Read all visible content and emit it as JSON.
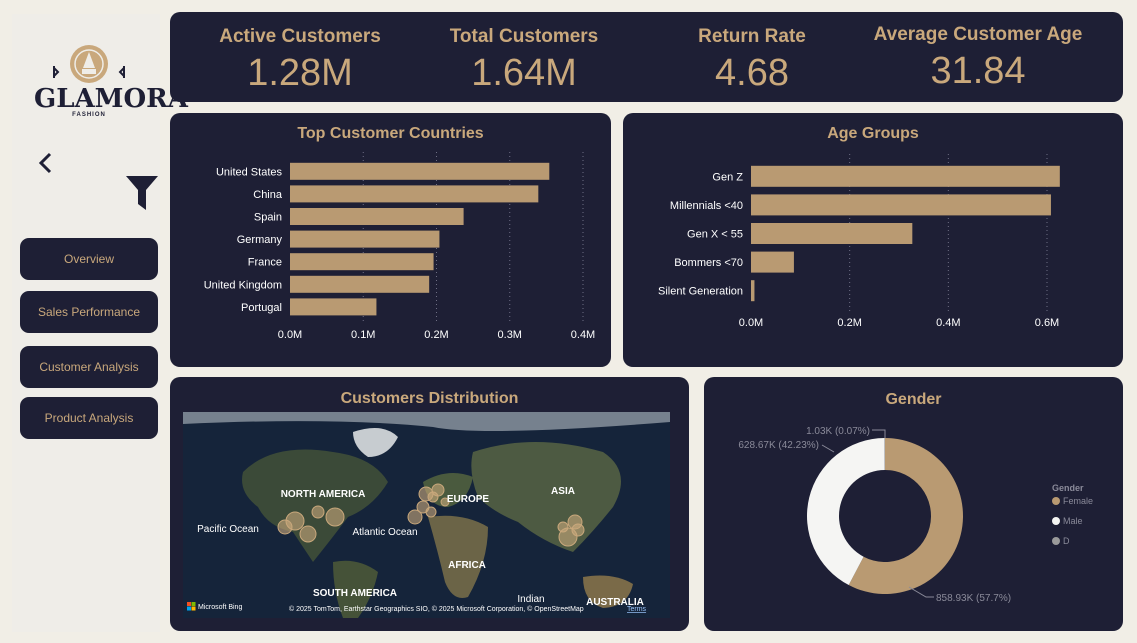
{
  "brand": {
    "name": "GLAMORA",
    "tagline": "FASHION"
  },
  "nav": [
    {
      "label": "Overview"
    },
    {
      "label": "Sales Performance"
    },
    {
      "label": "Customer Analysis"
    },
    {
      "label": "Product Analysis"
    }
  ],
  "kpis": [
    {
      "label": "Active Customers",
      "value": "1.28M"
    },
    {
      "label": "Total Customers",
      "value": "1.64M"
    },
    {
      "label": "Return Rate",
      "value": "4.68"
    },
    {
      "label": "Average Customer Age",
      "value": "31.84"
    }
  ],
  "colors": {
    "panel": "#1e1f35",
    "accent": "#c9a87c",
    "bar": "#b99a72",
    "male": "#f5f5f3"
  },
  "countries_chart": {
    "title": "Top Customer Countries",
    "chart_data": {
      "type": "bar",
      "orientation": "horizontal",
      "categories": [
        "United States",
        "China",
        "Spain",
        "Germany",
        "France",
        "United Kingdom",
        "Portugal"
      ],
      "values": [
        0.354,
        0.339,
        0.237,
        0.204,
        0.196,
        0.19,
        0.118
      ],
      "xlim": [
        0,
        0.4
      ],
      "xticks": [
        "0.0M",
        "0.1M",
        "0.2M",
        "0.3M",
        "0.4M"
      ],
      "grid": true
    }
  },
  "age_chart": {
    "title": "Age Groups",
    "chart_data": {
      "type": "bar",
      "orientation": "horizontal",
      "categories": [
        "Gen Z",
        "Millennials <40",
        "Gen X < 55",
        "Bommers <70",
        "Silent Generation"
      ],
      "values": [
        0.626,
        0.608,
        0.327,
        0.087,
        0.007
      ],
      "xlim": [
        0,
        0.6
      ],
      "xticks": [
        "0.0M",
        "0.2M",
        "0.4M",
        "0.6M"
      ],
      "grid": true
    }
  },
  "map": {
    "title": "Customers Distribution",
    "labels": [
      "NORTH AMERICA",
      "EUROPE",
      "ASIA",
      "Pacific Ocean",
      "Atlantic Ocean",
      "AFRICA",
      "SOUTH AMERICA",
      "Indian",
      "AUSTRALIA"
    ],
    "bing": "Microsoft Bing",
    "credits": "© 2025 TomTom, Earthstar Geographics SIO, © 2025 Microsoft Corporation, © OpenStreetMap",
    "terms": "Terms"
  },
  "gender_chart": {
    "title": "Gender",
    "legend_title": "Gender",
    "chart_data": {
      "type": "pie",
      "style": "donut",
      "categories": [
        "Female",
        "Male",
        "D"
      ],
      "values": [
        858.93,
        628.67,
        1.03
      ],
      "data_labels": [
        "858.93K (57.7%)",
        "628.67K (42.23%)",
        "1.03K (0.07%)"
      ],
      "colors": [
        "#b99a72",
        "#f5f5f3",
        "#9a9a9a"
      ],
      "legend": "right"
    }
  }
}
